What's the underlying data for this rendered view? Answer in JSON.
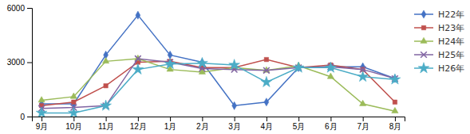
{
  "chart_data": {
    "type": "line",
    "categories": [
      "9月",
      "10月",
      "11月",
      "12月",
      "1月",
      "2月",
      "3月",
      "4月",
      "5月",
      "6月",
      "7月",
      "8月"
    ],
    "series": [
      {
        "name": "H22年",
        "color": "#4472C4",
        "marker": "diamond",
        "values": [
          700,
          700,
          3400,
          5600,
          3400,
          3000,
          600,
          800,
          2700,
          2750,
          2750,
          2100
        ]
      },
      {
        "name": "H23年",
        "color": "#C0504D",
        "marker": "square",
        "values": [
          600,
          800,
          1700,
          3000,
          3050,
          2700,
          2700,
          3150,
          2700,
          2850,
          2600,
          800
        ]
      },
      {
        "name": "H24年",
        "color": "#9BBB59",
        "marker": "triangle",
        "values": [
          900,
          1100,
          3050,
          3200,
          2600,
          2450,
          2700,
          2550,
          2800,
          2200,
          700,
          300
        ]
      },
      {
        "name": "H25年",
        "color": "#8064A2",
        "marker": "x",
        "values": [
          450,
          500,
          600,
          3200,
          3000,
          2650,
          2600,
          2550,
          2700,
          2750,
          2600,
          2100
        ]
      },
      {
        "name": "H26年",
        "color": "#4BACC6",
        "marker": "star",
        "values": [
          200,
          200,
          600,
          2600,
          2900,
          2950,
          2850,
          1900,
          2700,
          2700,
          2200,
          2050
        ]
      }
    ],
    "ylim": [
      0,
      6000
    ],
    "yticks": [
      0,
      3000,
      6000
    ],
    "grid": false,
    "legend": "right"
  }
}
